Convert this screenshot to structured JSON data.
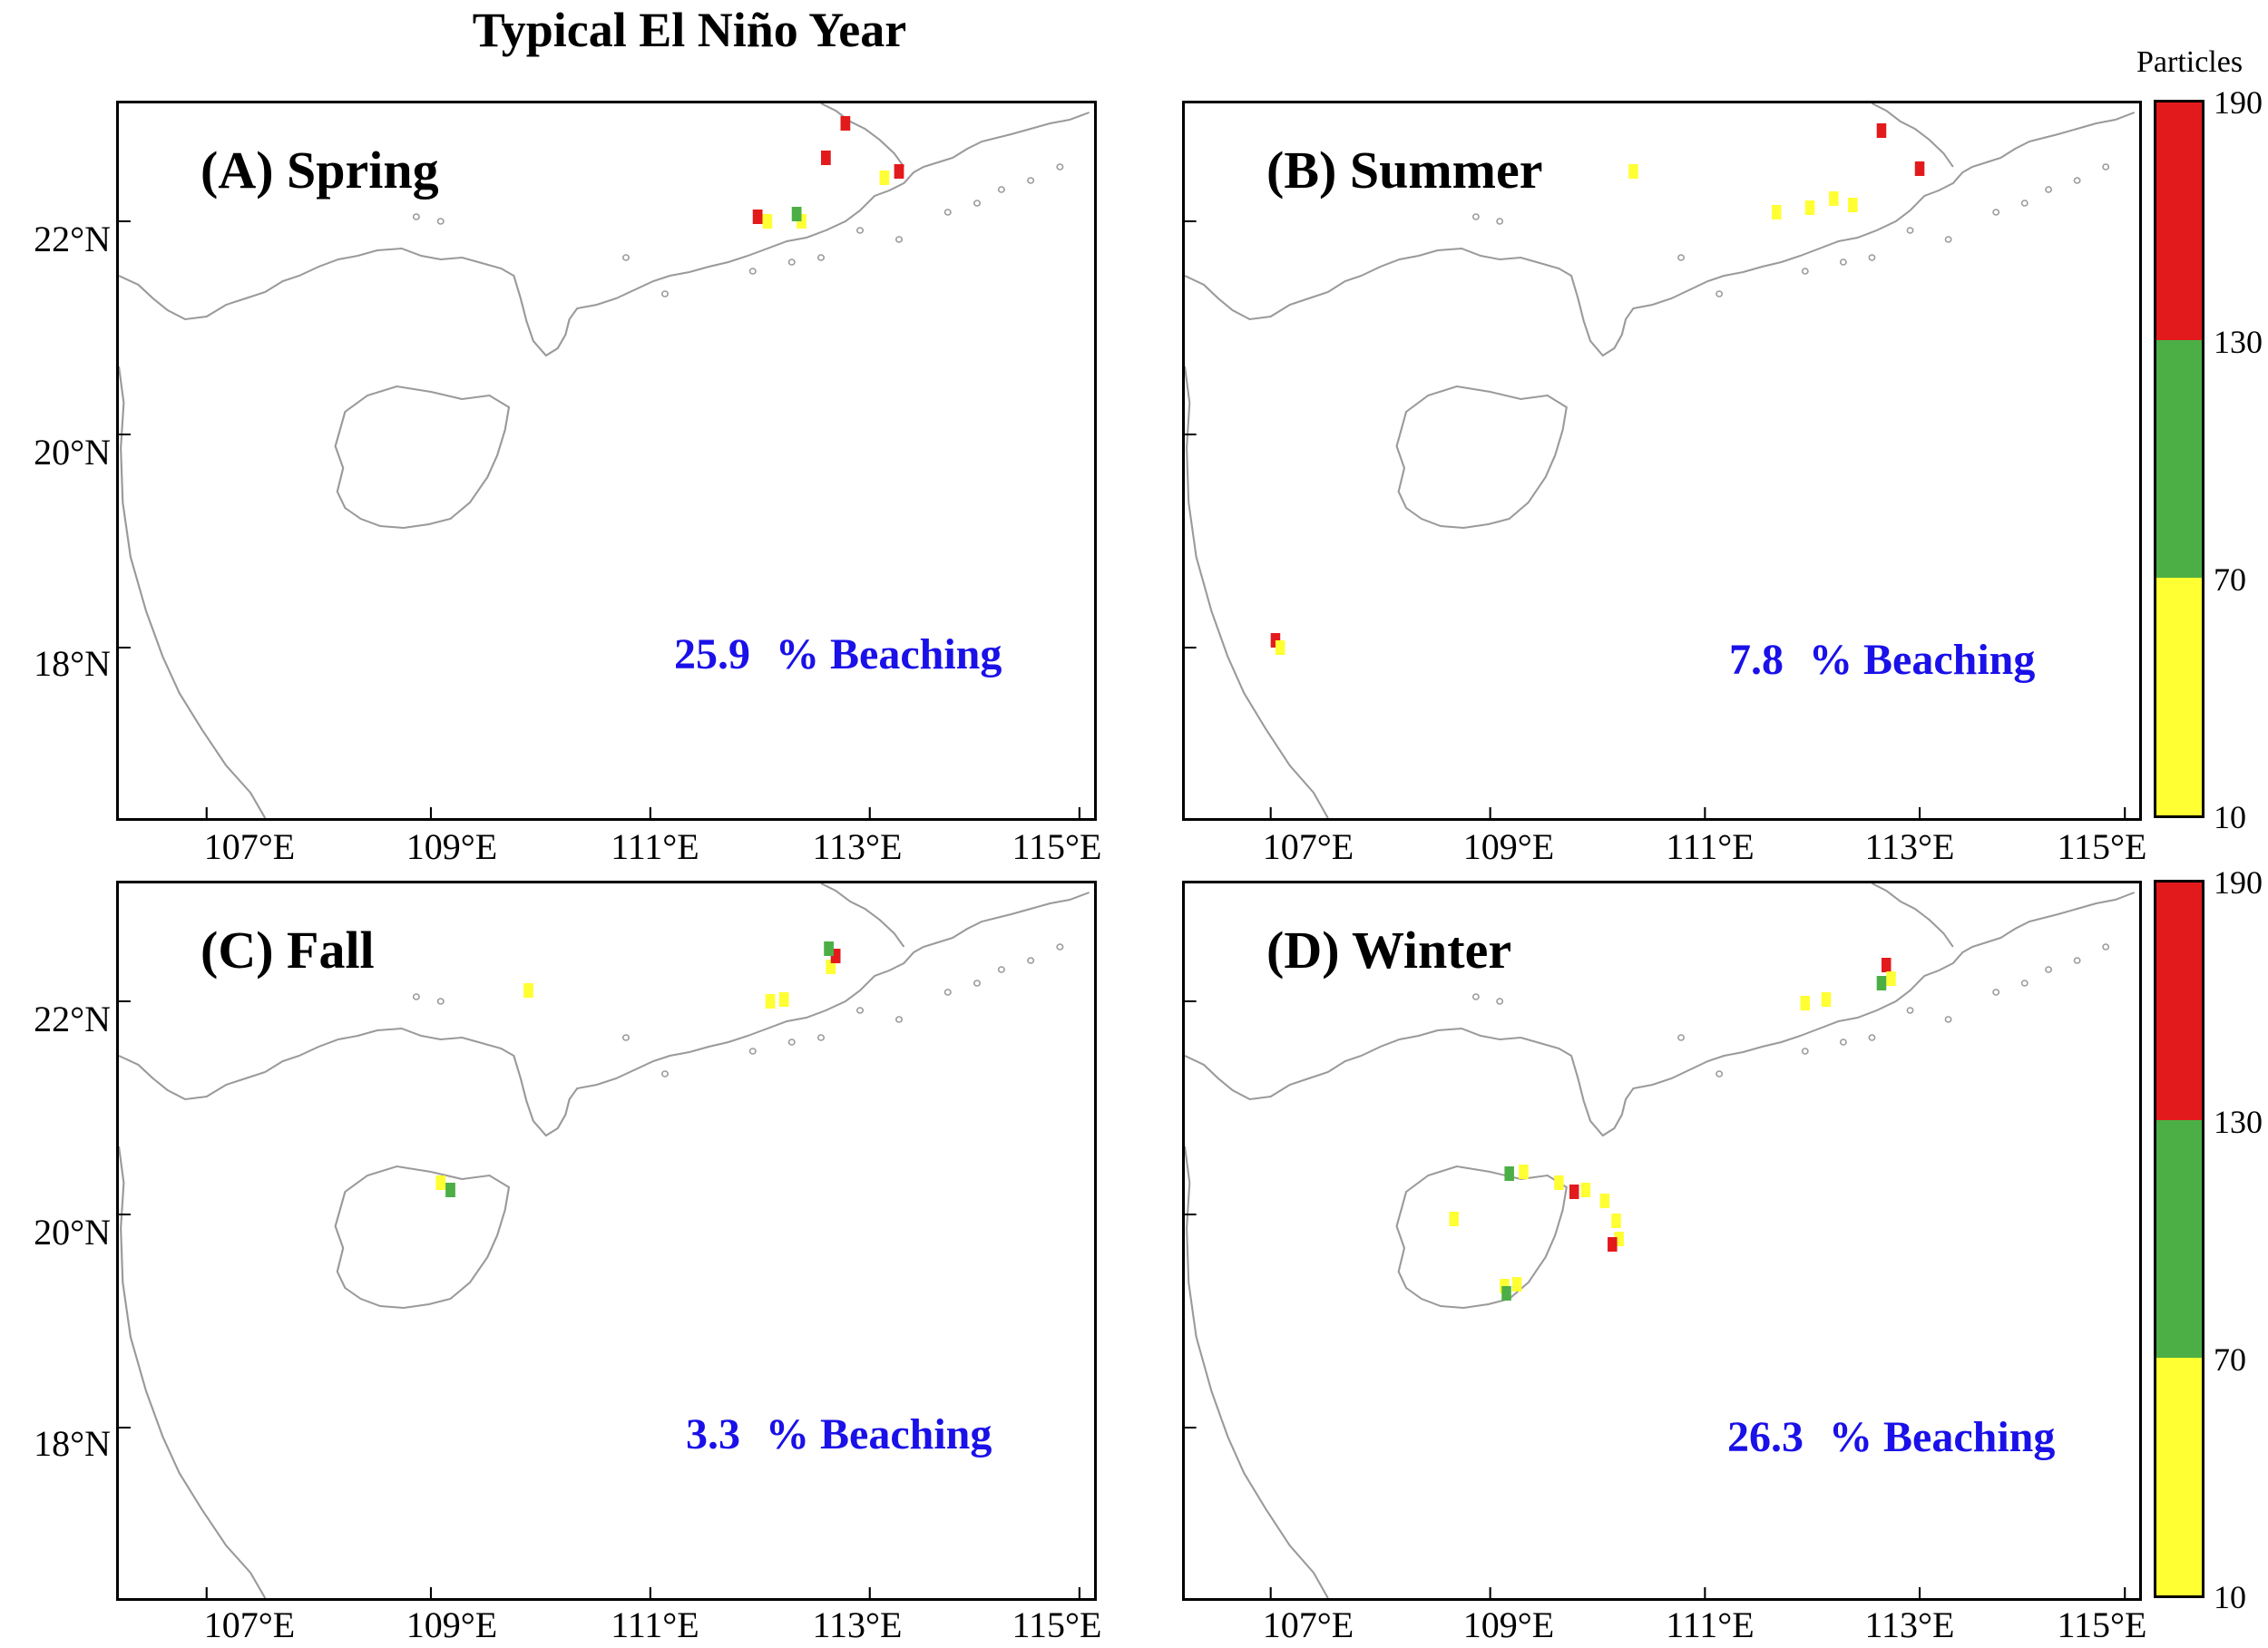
{
  "figure": {
    "title": "Typical El Niño Year"
  },
  "panels": [
    {
      "id": "A",
      "label": "(A) Spring",
      "beaching_value": "25.9",
      "beaching_text": "% Beaching"
    },
    {
      "id": "B",
      "label": "(B) Summer",
      "beaching_value": "7.8",
      "beaching_text": "% Beaching"
    },
    {
      "id": "C",
      "label": "(C) Fall",
      "beaching_value": "3.3",
      "beaching_text": "% Beaching"
    },
    {
      "id": "D",
      "label": "(D) Winter",
      "beaching_value": "26.3",
      "beaching_text": "% Beaching"
    }
  ],
  "axes": {
    "x_ticks": [
      "107°E",
      "109°E",
      "111°E",
      "113°E",
      "115°E"
    ],
    "y_ticks": [
      "22°N",
      "20°N",
      "18°N"
    ]
  },
  "colorbar": {
    "title": "Particles",
    "ticks": [
      "190",
      "130",
      "70",
      "10"
    ],
    "bins": [
      {
        "range": "130-190",
        "color": "#e31a1c"
      },
      {
        "range": "70-130",
        "color": "#4caf46"
      },
      {
        "range": "10-70",
        "color": "#ffff33"
      }
    ]
  },
  "colors": {
    "coastline": "#9a9a9a",
    "beaching_text": "#1a10e8"
  }
}
